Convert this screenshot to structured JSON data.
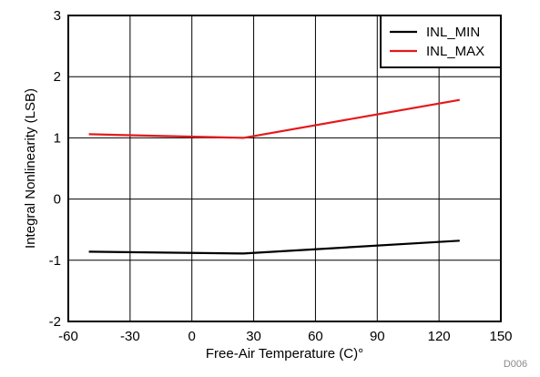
{
  "chart_data": {
    "type": "line",
    "title": "",
    "xlabel": "Free-Air Temperature (C)°",
    "ylabel": "Integral Nonlinearity (LSB)",
    "xlim": [
      -60,
      150
    ],
    "ylim": [
      -2,
      3
    ],
    "xticks": [
      -60,
      -30,
      0,
      30,
      60,
      90,
      120,
      150
    ],
    "yticks": [
      -2,
      -1,
      0,
      1,
      2,
      3
    ],
    "grid": true,
    "legend_position": "top-right",
    "series": [
      {
        "name": "INL_MIN",
        "color": "#000000",
        "x": [
          -50,
          25,
          130
        ],
        "y": [
          -0.86,
          -0.89,
          -0.68
        ]
      },
      {
        "name": "INL_MAX",
        "color": "#e31a1c",
        "x": [
          -50,
          25,
          130
        ],
        "y": [
          1.06,
          1.0,
          1.62
        ]
      }
    ],
    "figure_id": "D006"
  }
}
